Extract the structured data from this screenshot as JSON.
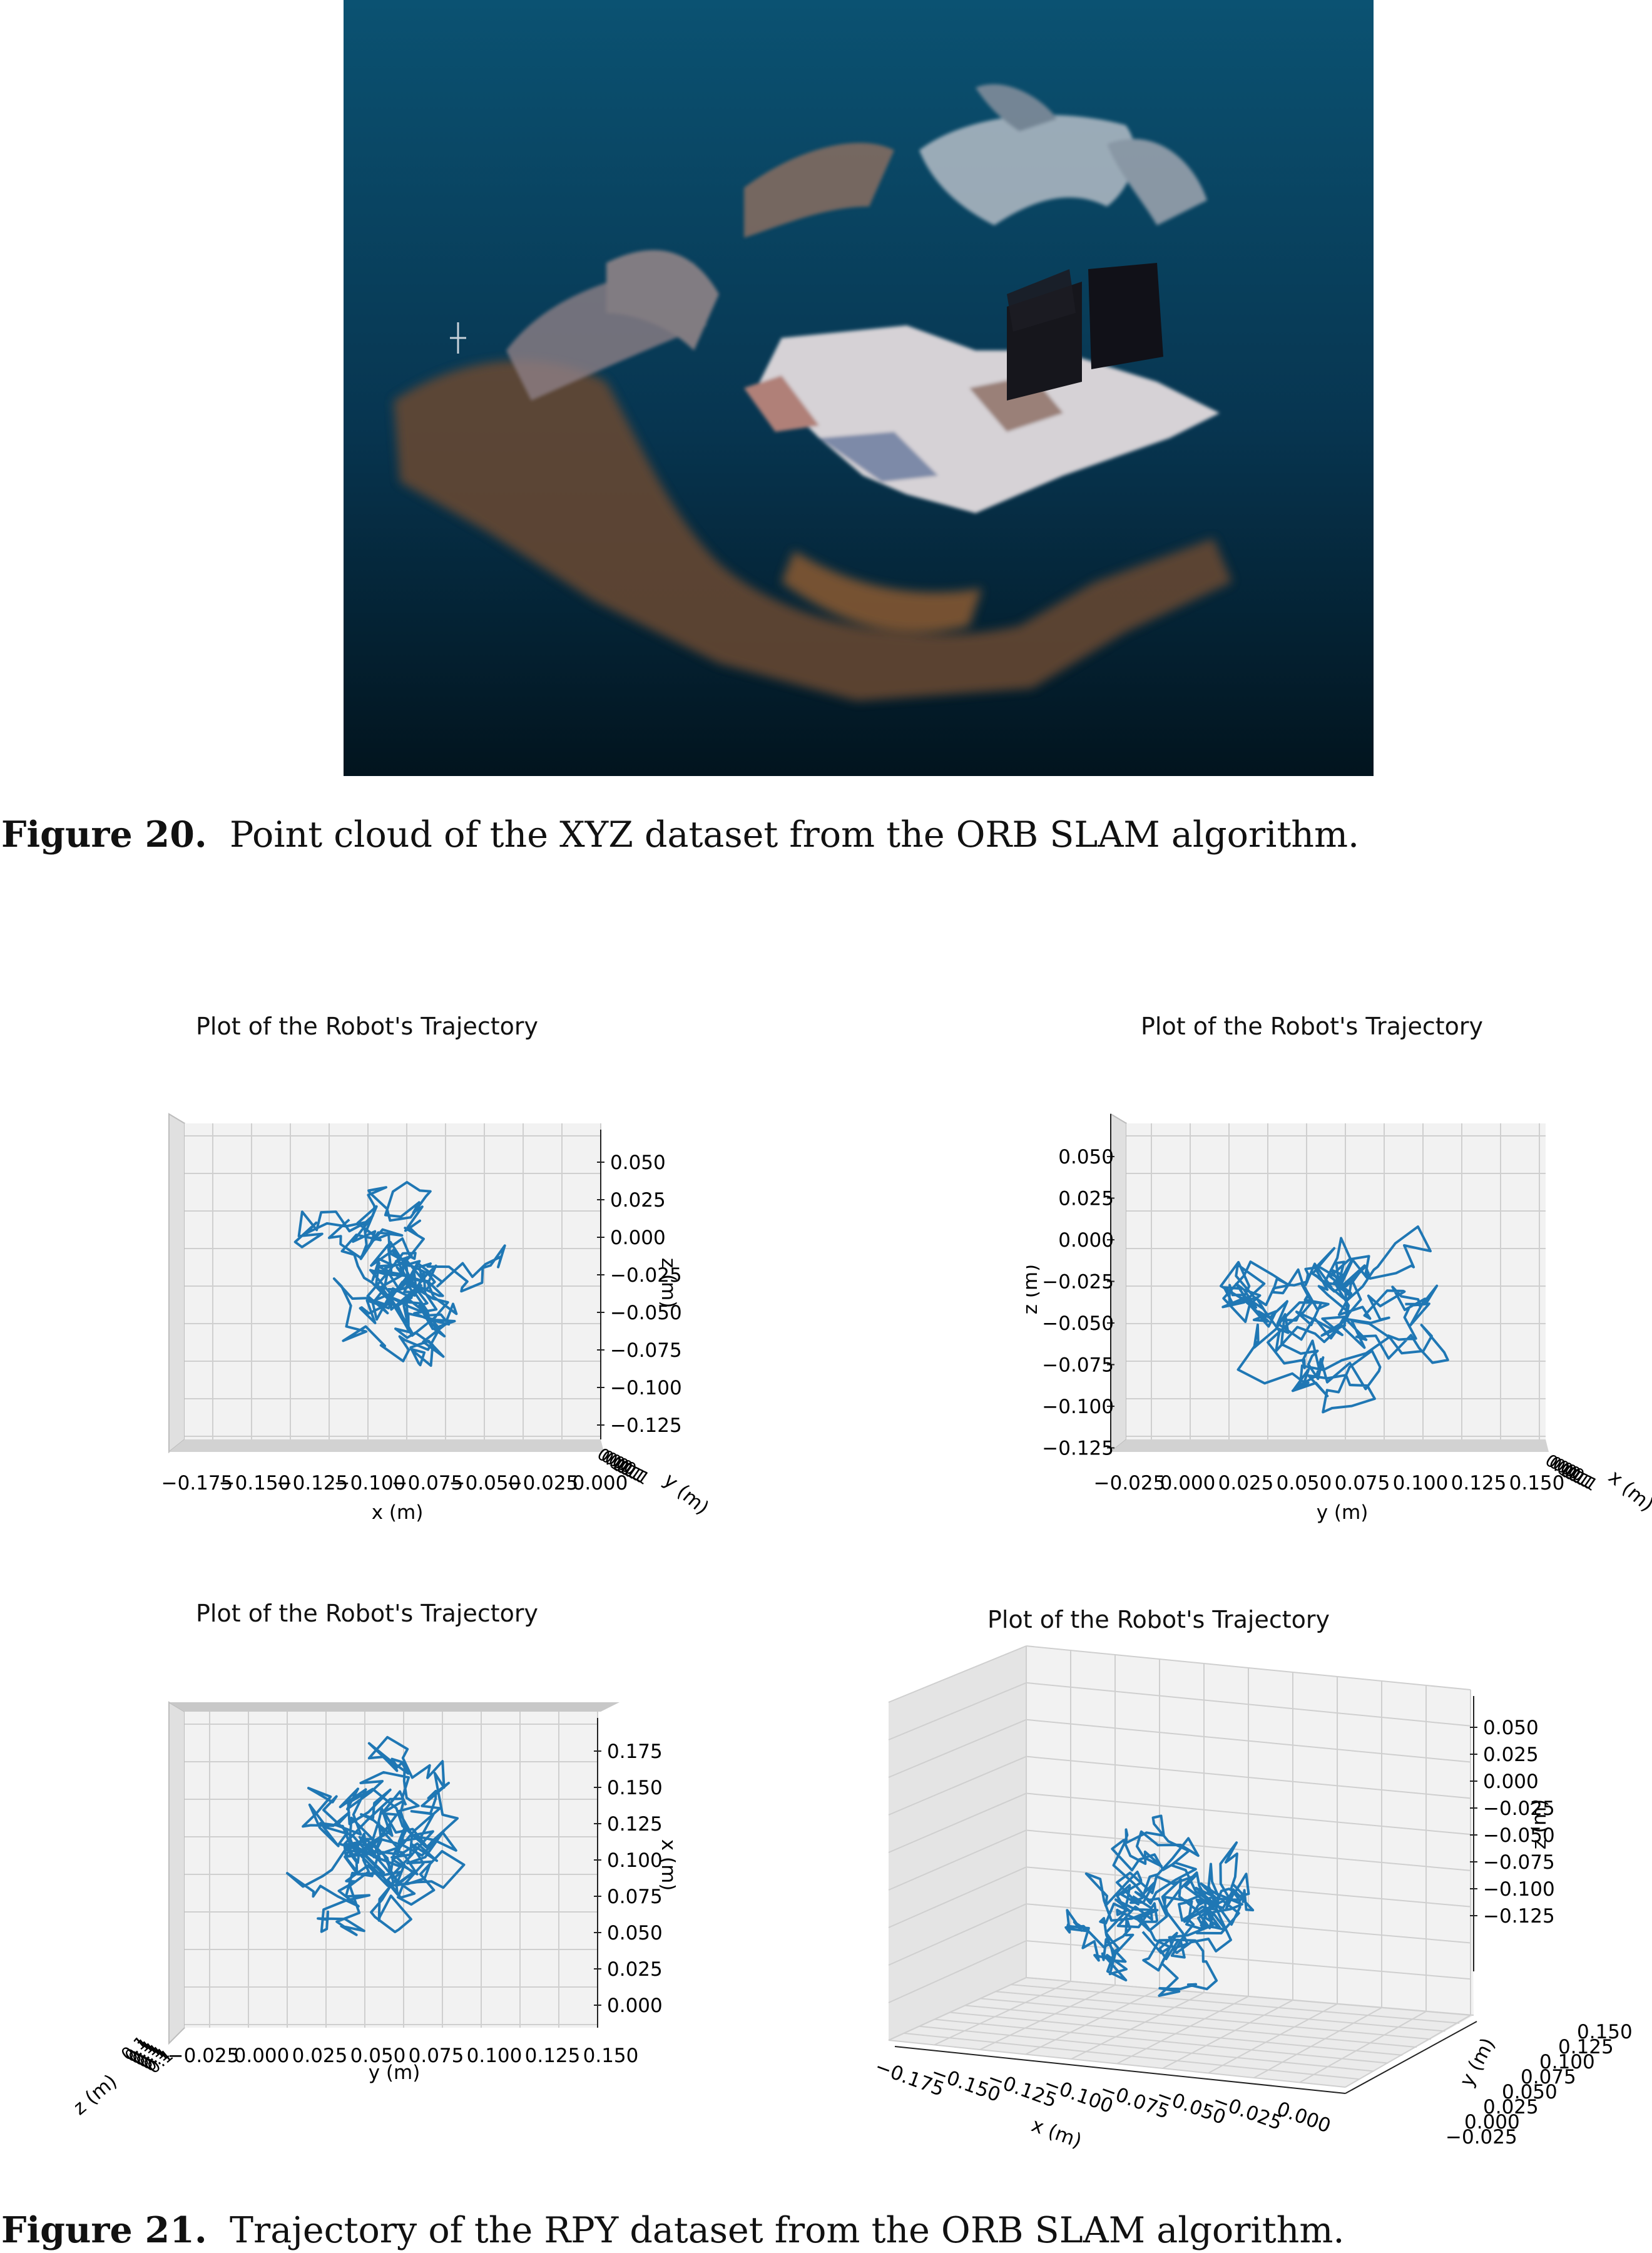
{
  "figure20": {
    "label": "Figure 20.",
    "text": "Point cloud of the XYZ dataset from the ORB SLAM algorithm."
  },
  "figure21": {
    "label": "Figure 21.",
    "text": "Trajectory of the RPY dataset from the ORB SLAM algorithm."
  },
  "colors": {
    "trajectory": "#1f77b4",
    "pane": "#f2f2f2",
    "pane_side": "#e6e6e6",
    "grid": "#cfcfcf",
    "pointcloud_top": "#0b5272",
    "pointcloud_bottom": "#02141e"
  },
  "chart_data": [
    {
      "type": "line",
      "view": "x-z",
      "title": "Plot of the Robot's Trajectory",
      "xlabel": "x (m)",
      "ylabel": "z (m)",
      "hidden_axis_label": "y (m)",
      "xticks": [
        "−0.175",
        "−0.150",
        "−0.125",
        "−0.100",
        "−0.075",
        "−0.050",
        "−0.025",
        "0.000"
      ],
      "zticks": [
        "0.050",
        "0.025",
        "0.000",
        "−0.025",
        "−0.050",
        "−0.075",
        "−0.100",
        "−0.125"
      ],
      "xlim": [
        -0.19,
        0.0
      ],
      "ylim": [
        -0.125,
        0.06
      ]
    },
    {
      "type": "line",
      "view": "y-z",
      "title": "Plot of the Robot's Trajectory",
      "xlabel": "y (m)",
      "ylabel": "z (m)",
      "hidden_axis_label": "x (m)",
      "xticks": [
        "−0.025",
        "0.000",
        "0.025",
        "0.050",
        "0.075",
        "0.100",
        "0.125",
        "0.150"
      ],
      "zticks": [
        "0.050",
        "0.025",
        "0.000",
        "−0.025",
        "−0.050",
        "−0.075",
        "−0.100",
        "−0.125"
      ],
      "xlim": [
        -0.03,
        0.16
      ],
      "ylim": [
        -0.125,
        0.06
      ]
    },
    {
      "type": "line",
      "view": "y-x",
      "title": "Plot of the Robot's Trajectory",
      "xlabel": "y (m)",
      "ylabel": "x (m)",
      "hidden_axis_label": "z (m)",
      "xticks": [
        "−0.025",
        "0.000",
        "0.025",
        "0.050",
        "0.075",
        "0.100",
        "0.125",
        "0.150"
      ],
      "zticks": [
        "0.175",
        "0.150",
        "0.125",
        "0.100",
        "0.075",
        "0.050",
        "0.025",
        "0.000"
      ],
      "xlim": [
        -0.03,
        0.16
      ],
      "ylim": [
        0.0,
        0.18
      ]
    },
    {
      "type": "line",
      "view": "3d",
      "title": "Plot of the Robot's Trajectory",
      "xlabel": "x (m)",
      "ylabel": "y (m)",
      "zlabel": "z (m)",
      "xticks": [
        "−0.175",
        "−0.150",
        "−0.125",
        "−0.100",
        "−0.075",
        "−0.050",
        "−0.025",
        "0.000"
      ],
      "yticks": [
        "−0.025",
        "0.000",
        "0.025",
        "0.050",
        "0.075",
        "0.100",
        "0.125",
        "0.150"
      ],
      "zticks": [
        "0.050",
        "0.025",
        "0.000",
        "−0.025",
        "−0.050",
        "−0.075",
        "−0.100",
        "−0.125"
      ]
    }
  ]
}
